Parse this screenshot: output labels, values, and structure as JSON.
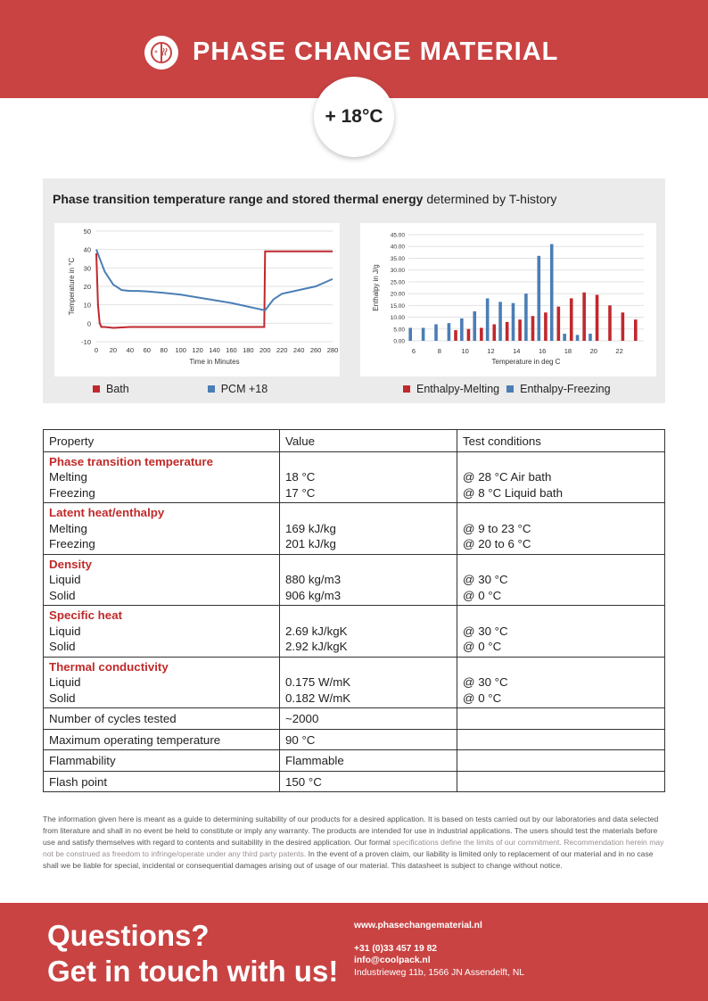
{
  "header": {
    "title": "PHASE CHANGE MATERIAL",
    "temperature": "+ 18°C",
    "brand_color": "#c94343"
  },
  "chart_panel": {
    "heading_bold": "Phase transition temperature range and stored thermal energy",
    "heading_rest": " determined by T-history"
  },
  "chart_data": [
    {
      "type": "line",
      "xlabel": "Time in Minutes",
      "ylabel": "Temperature in °C",
      "xlim": [
        0,
        280
      ],
      "ylim": [
        -10,
        50
      ],
      "x_ticks": [
        0,
        20,
        40,
        60,
        80,
        100,
        120,
        140,
        160,
        180,
        200,
        220,
        240,
        260,
        280
      ],
      "y_ticks": [
        -10,
        0,
        10,
        20,
        30,
        40,
        50
      ],
      "grid": true,
      "legend": "bottom",
      "series": [
        {
          "name": "Bath",
          "color": "#c0282d",
          "x": [
            0,
            2,
            4,
            6,
            10,
            20,
            40,
            100,
            150,
            199,
            200,
            201,
            220,
            250,
            280
          ],
          "y": [
            38,
            10,
            0,
            -2,
            -2,
            -2.5,
            -2,
            -2,
            -2,
            -2,
            39,
            39,
            39,
            39,
            39
          ]
        },
        {
          "name": "PCM +18",
          "color": "#4a7eb5",
          "x": [
            0,
            5,
            10,
            20,
            30,
            40,
            50,
            60,
            80,
            100,
            120,
            140,
            160,
            180,
            190,
            200,
            205,
            210,
            220,
            240,
            260,
            270,
            280
          ],
          "y": [
            40,
            34,
            28,
            21,
            18,
            17.5,
            17.5,
            17.3,
            16.5,
            15.5,
            14,
            12.5,
            11,
            9,
            8,
            7,
            10,
            13,
            16,
            18,
            20,
            22,
            24
          ]
        }
      ]
    },
    {
      "type": "bar",
      "xlabel": "Temperature in deg C",
      "ylabel": "Enthalpy in J/g",
      "ylim": [
        0,
        45
      ],
      "y_ticks": [
        "0.00",
        "5.00",
        "10.00",
        "15.00",
        "20.00",
        "25.00",
        "30.00",
        "35.00",
        "40.00",
        "45.00"
      ],
      "x_ticks": [
        "6",
        "8",
        "10",
        "12",
        "14",
        "16",
        "18",
        "20",
        "22"
      ],
      "categories": [
        6,
        7,
        8,
        9,
        10,
        11,
        12,
        13,
        14,
        15,
        16,
        17,
        18,
        19,
        20,
        21,
        22,
        23
      ],
      "grid": true,
      "legend": "bottom",
      "series": [
        {
          "name": "Enthalpy-Melting",
          "color": "#c0282d",
          "values": [
            null,
            null,
            null,
            4.5,
            5.0,
            5.5,
            7.0,
            8.0,
            9.0,
            10.5,
            12.0,
            14.5,
            18.0,
            20.5,
            19.5,
            15.0,
            12.0,
            9.0
          ]
        },
        {
          "name": "Enthalpy-Freezing",
          "color": "#4a7eb5",
          "values": [
            5.5,
            5.5,
            7.0,
            7.5,
            9.5,
            12.5,
            18.0,
            16.5,
            16.0,
            20.0,
            36.0,
            41.0,
            3.0,
            2.5,
            3.0,
            null,
            null,
            null
          ]
        }
      ]
    }
  ],
  "legend_left": {
    "a": "Bath",
    "b": "PCM +18",
    "a_color": "#c0282d",
    "b_color": "#4a7eb5"
  },
  "legend_right": {
    "a": "Enthalpy-Melting",
    "b": "Enthalpy-Freezing",
    "a_color": "#c0282d",
    "b_color": "#4a7eb5"
  },
  "table": {
    "headers": [
      "Property",
      "Value",
      "Test conditions"
    ],
    "groups": [
      {
        "title": "Phase transition temperature",
        "rows": [
          {
            "label": "Melting",
            "value": "18 °C",
            "cond": "@ 28 °C Air bath"
          },
          {
            "label": "Freezing",
            "value": "17 °C",
            "cond": "@ 8 °C Liquid bath"
          }
        ]
      },
      {
        "title": "Latent heat/enthalpy",
        "rows": [
          {
            "label": "Melting",
            "value": "169 kJ/kg",
            "cond": "@ 9 to 23 °C"
          },
          {
            "label": "Freezing",
            "value": "201 kJ/kg",
            "cond": "@ 20 to 6 °C"
          }
        ]
      },
      {
        "title": "Density",
        "rows": [
          {
            "label": "Liquid",
            "value": "880 kg/m3",
            "cond": "@ 30 °C"
          },
          {
            "label": "Solid",
            "value": "906 kg/m3",
            "cond": "@ 0 °C"
          }
        ]
      },
      {
        "title": "Specific heat",
        "rows": [
          {
            "label": "Liquid",
            "value": "2.69 kJ/kgK",
            "cond": "@ 30 °C"
          },
          {
            "label": "Solid",
            "value": "2.92 kJ/kgK",
            "cond": "@ 0 °C"
          }
        ]
      },
      {
        "title": "Thermal conductivity",
        "rows": [
          {
            "label": "Liquid",
            "value": "0.175 W/mK",
            "cond": "@ 30 °C"
          },
          {
            "label": "Solid",
            "value": "0.182 W/mK",
            "cond": "@ 0 °C"
          }
        ]
      }
    ],
    "singles": [
      {
        "label": "Number of cycles tested",
        "value": "~2000",
        "cond": ""
      },
      {
        "label": "Maximum operating temperature",
        "value": "90 °C",
        "cond": ""
      },
      {
        "label": "Flammability",
        "value": "Flammable",
        "cond": ""
      },
      {
        "label": "Flash point",
        "value": "150 °C",
        "cond": ""
      }
    ]
  },
  "disclaimer": {
    "part1": "The information given here is meant as a guide to determining suitability of our products for a desired application. It is based on tests carried out by our laboratories and data selected from literature and shall in no event be held to constitute or imply any warranty. The products are intended for use in industrial applications. The users should test the materials before use and satisfy themselves with regard to contents and suitability in the desired application. Our formal ",
    "part2": "specifications define the limits of our commitment. Recommendation herein may not be construed as freedom to infringe/operate under any third party patents.",
    "part3": " In the event of a proven claim, our liability is limited only to replacement of our material and in no case shall we be liable for special, incidental or consequential damages arising out of usage of our material. This datasheet is subject to change without notice."
  },
  "footer": {
    "question_line1": "Questions?",
    "question_line2": "Get in touch with us!",
    "website": "www.phasechangematerial.nl",
    "phone": "+31 (0)33 457 19 82",
    "email": "info@coolpack.nl",
    "address": "Industrieweg 11b, 1566 JN Assendelft, NL"
  }
}
